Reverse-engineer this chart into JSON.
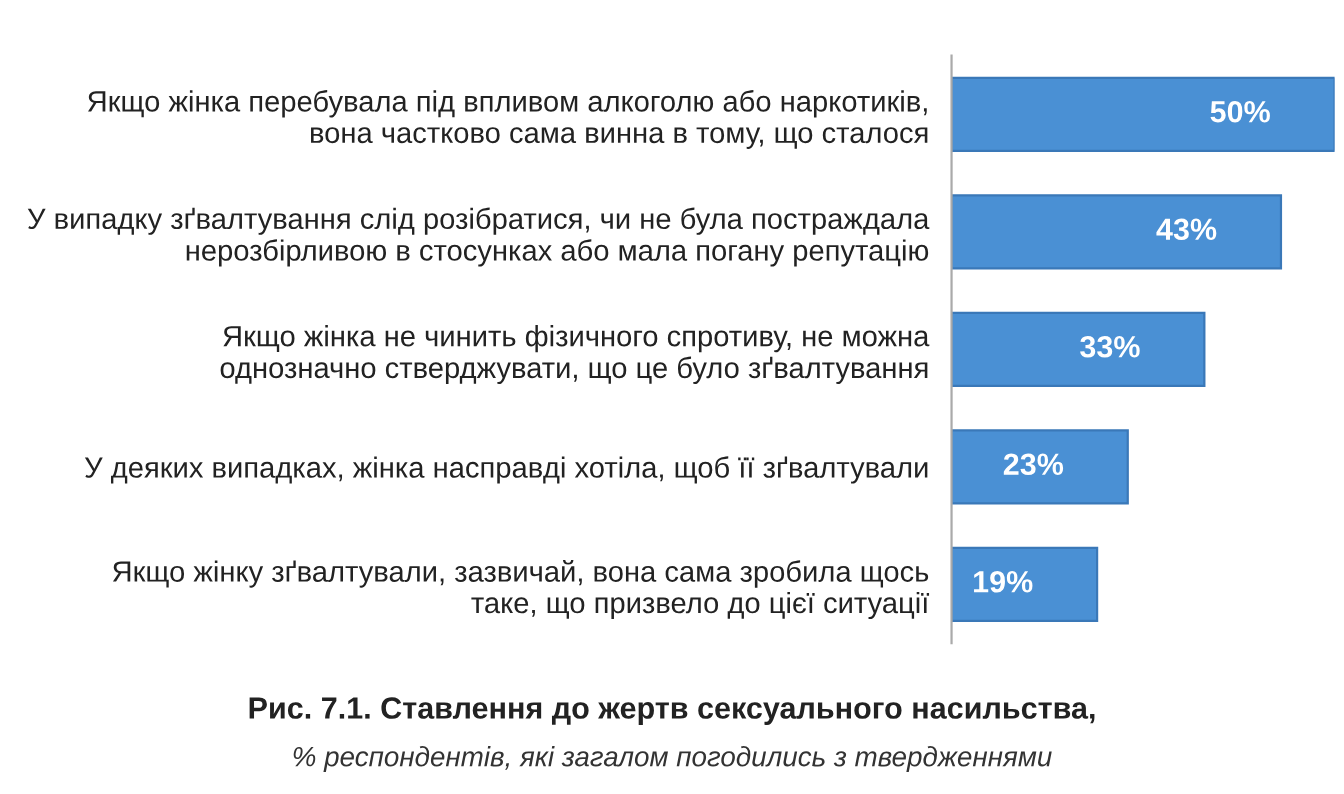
{
  "chart_data": {
    "type": "bar",
    "orientation": "horizontal",
    "title": "Рис. 7.1. Ставлення до жертв сексуального насильства,",
    "subtitle": "% респондентів, які загалом погодились з твердженнями",
    "categories": [
      "Якщо жінка перебувала під впливом алкоголю або наркотиків,\nвона частково сама винна в тому, що сталося",
      "У випадку зґвалтування слід розібратися, чи не була постраждала\nнерозбірливою в стосунках або мала погану репутацію",
      "Якщо жінка не чинить фізичного спротиву, не можна\nоднозначно стверджувати, що це було зґвалтування",
      "У деяких випадках, жінка насправді хотіла, щоб її зґвалтували",
      "Якщо жінку зґвалтували, зазвичай, вона сама зробила щось\nтаке, що призвело до цієї ситуації"
    ],
    "values": [
      50,
      43,
      33,
      23,
      19
    ],
    "value_labels": [
      "50%",
      "43%",
      "33%",
      "23%",
      "19%"
    ],
    "color": "#4a90d4"
  }
}
